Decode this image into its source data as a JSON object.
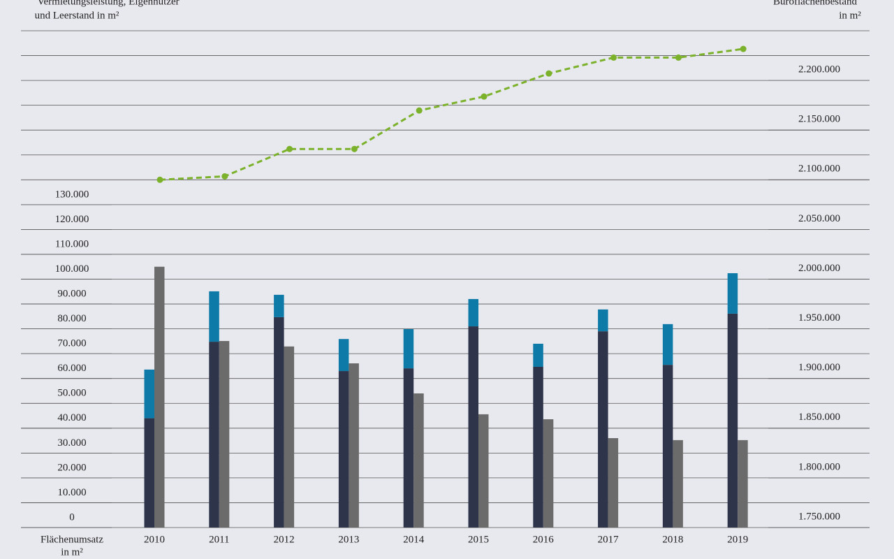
{
  "chart_data": {
    "type": "bar",
    "y_label": [
      "Vermietungsleistung, Eigennutzer",
      "und Leerstand in m²"
    ],
    "y2_label": [
      "Büroflächenbestand",
      "in m²"
    ],
    "x_label": [
      "Flächenumsatz",
      "in m²"
    ],
    "categories": [
      "2010",
      "2011",
      "2012",
      "2013",
      "2014",
      "2015",
      "2016",
      "2017",
      "2018",
      "2019"
    ],
    "series": [
      {
        "type": "bar",
        "stack": "a",
        "color": "#2e3449",
        "values": [
          44000,
          74800,
          84700,
          63000,
          64100,
          81000,
          64700,
          79000,
          65500,
          86100
        ]
      },
      {
        "type": "bar",
        "stack": "a",
        "color": "#0e7aa8",
        "values": [
          19600,
          20300,
          9000,
          12900,
          15800,
          11000,
          9300,
          8800,
          16400,
          16300
        ]
      },
      {
        "type": "bar",
        "stack": "b",
        "color": "#6b6b6b",
        "values": [
          105000,
          75100,
          72900,
          66100,
          54000,
          45600,
          43600,
          36000,
          35200,
          35200
        ]
      },
      {
        "type": "line",
        "axis": "y2",
        "color": "#7cb22b",
        "dashed": true,
        "values": [
          2100000,
          2103500,
          2131000,
          2131000,
          2169700,
          2183800,
          2207000,
          2223000,
          2223000,
          2231700
        ]
      }
    ],
    "ylim": [
      0,
      200000
    ],
    "yticks": [
      0,
      {
        "value": 10000,
        "label": "10.000"
      },
      {
        "value": 20000,
        "label": "20.000"
      },
      {
        "value": 30000,
        "label": "30.000"
      },
      {
        "value": 40000,
        "label": "40.000"
      },
      {
        "value": 50000,
        "label": "50.000"
      },
      {
        "value": 60000,
        "label": "60.000"
      },
      {
        "value": 70000,
        "label": "70.000"
      },
      {
        "value": 80000,
        "label": "80.000"
      },
      {
        "value": 90000,
        "label": "90.000"
      },
      {
        "value": 100000,
        "label": "100.000"
      },
      {
        "value": 110000,
        "label": "110.000"
      },
      {
        "value": 120000,
        "label": "120.000"
      },
      {
        "value": 130000,
        "label": "130.000"
      }
    ],
    "y2lim": [
      1750000,
      2250000
    ],
    "y2ticks": [
      {
        "value": 1750000,
        "label": "1.750.000"
      },
      {
        "value": 1800000,
        "label": "1.800.000"
      },
      {
        "value": 1850000,
        "label": "1.850.000"
      },
      {
        "value": 1900000,
        "label": "1.900.000"
      },
      {
        "value": 1950000,
        "label": "1.950.000"
      },
      {
        "value": 2000000,
        "label": "2.000.000"
      },
      {
        "value": 2050000,
        "label": "2.050.000"
      },
      {
        "value": 2100000,
        "label": "2.100.000"
      },
      {
        "value": 2150000,
        "label": "2.150.000"
      },
      {
        "value": 2200000,
        "label": "2.200.000"
      }
    ],
    "grid": true
  }
}
